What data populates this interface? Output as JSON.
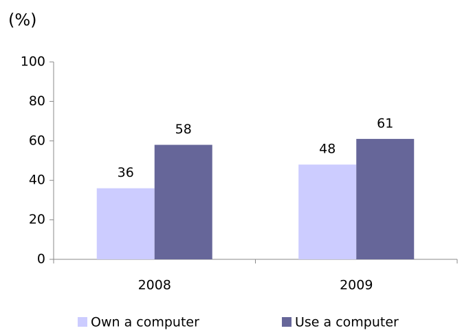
{
  "chart_data": {
    "type": "bar",
    "y_label": "(%)",
    "categories": [
      "2008",
      "2009"
    ],
    "series": [
      {
        "name": "Own a computer",
        "color": "#ccccff",
        "values": [
          36,
          48
        ]
      },
      {
        "name": "Use a computer",
        "color": "#666699",
        "values": [
          58,
          61
        ]
      }
    ],
    "ylim": [
      0,
      100
    ],
    "yticks": [
      0,
      20,
      40,
      60,
      80,
      100
    ],
    "grid": false,
    "legend": "bottom"
  }
}
